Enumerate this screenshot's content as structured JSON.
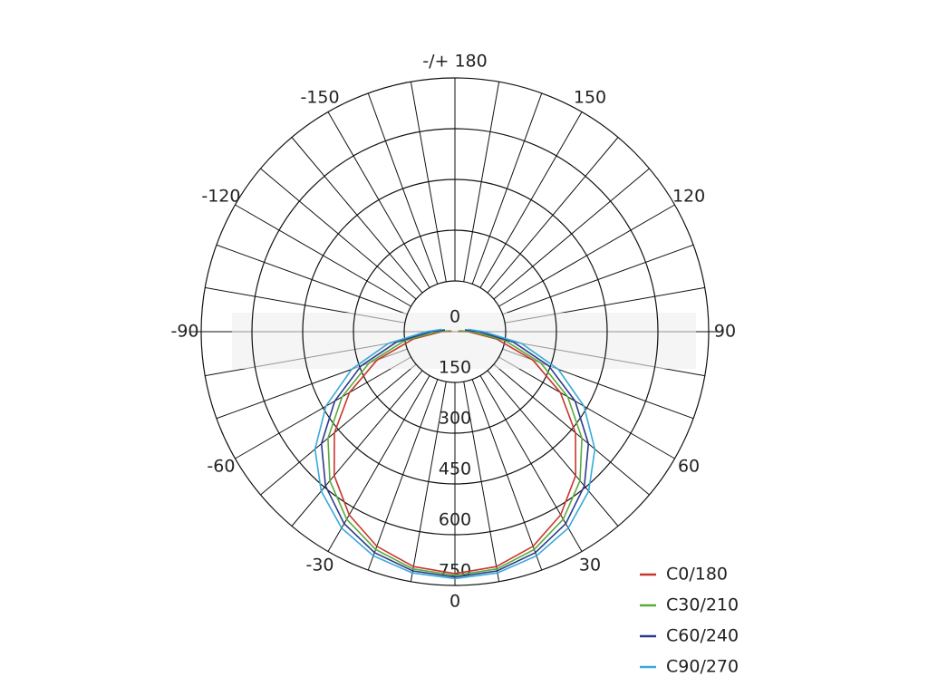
{
  "chart_data": {
    "type": "polar",
    "x": [
      -100,
      -90,
      -80,
      -70,
      -60,
      -50,
      -40,
      -30,
      -20,
      -10,
      0,
      10,
      20,
      30,
      40,
      50,
      60,
      70,
      80,
      90,
      100
    ],
    "series": [
      {
        "name": "C0/180",
        "color": "#c8372d",
        "values": [
          10,
          40,
          125,
          245,
          360,
          465,
          555,
          625,
          675,
          705,
          715,
          705,
          675,
          625,
          555,
          465,
          360,
          245,
          125,
          40,
          10
        ]
      },
      {
        "name": "C30/210",
        "color": "#5aaa3c",
        "values": [
          15,
          50,
          150,
          270,
          385,
          490,
          575,
          640,
          685,
          712,
          720,
          712,
          685,
          640,
          575,
          490,
          385,
          270,
          150,
          50,
          15
        ]
      },
      {
        "name": "C60/240",
        "color": "#2b3a8a",
        "values": [
          30,
          70,
          175,
          295,
          410,
          515,
          595,
          655,
          695,
          718,
          725,
          718,
          695,
          655,
          595,
          515,
          410,
          295,
          175,
          70,
          30
        ]
      },
      {
        "name": "C90/270",
        "color": "#3aa8d8",
        "values": [
          40,
          85,
          200,
          325,
          440,
          540,
          615,
          670,
          705,
          724,
          730,
          724,
          705,
          670,
          615,
          540,
          440,
          325,
          200,
          85,
          40
        ]
      }
    ],
    "xticks": [
      {
        "value": 180,
        "label": "-/+ 180"
      },
      150,
      120,
      90,
      60,
      30,
      0,
      -30,
      -60,
      -90,
      -120,
      -150
    ],
    "ylim": [
      0,
      750
    ],
    "yticks": [
      0,
      150,
      300,
      450,
      600,
      750
    ],
    "grid": true
  }
}
